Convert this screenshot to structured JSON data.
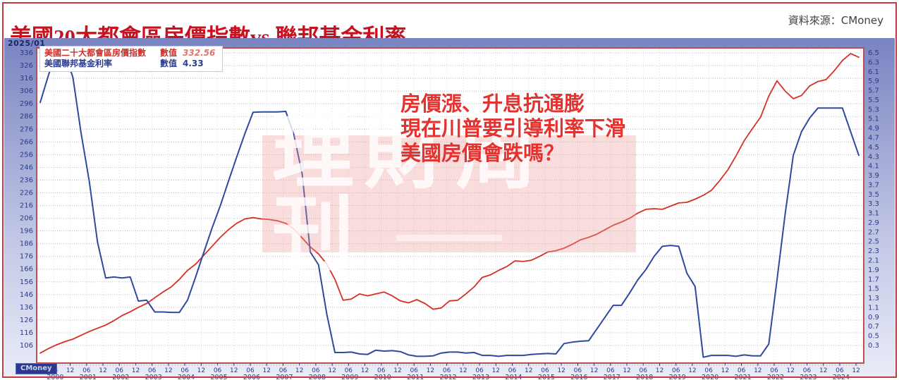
{
  "header": {
    "title": "美國20大都會區房價指數vs.聯邦基金利率",
    "source": "資料來源：CMoney"
  },
  "widget": {
    "date_label": "2025/01",
    "logo": "CMoney",
    "legend": [
      {
        "label": "美國二十大都會區房價指數",
        "value_label": "數值",
        "value": "332.56"
      },
      {
        "label": "美國聯邦基金利率",
        "value_label": "數值",
        "value": "4.33"
      }
    ],
    "annotation": {
      "lines": [
        "房價漲、升息抗通膨",
        "現在川普要引導利率下滑",
        "美國房價會跌嗎？"
      ]
    },
    "watermark": "理財周刊"
  },
  "colors": {
    "title": "#c8101e",
    "page_border": "#c5383f",
    "plot_border": "#c0504d",
    "axis_labels": "#2b3a8c",
    "grid_line": "#bcbcc4",
    "vertical_grid_line": "#d9d9e0",
    "home_price_line": "#d62f26",
    "fed_funds_line": "#2e4a9e",
    "annotation": "#e5322e",
    "watermark_panel": "#ec9a9a",
    "widget_bg_top": "#7a84c1",
    "widget_bg_bottom": "#e9ecf8"
  },
  "chart_data": {
    "type": "line",
    "title": "美國20大都會區房價指數vs.聯邦基金利率",
    "x_unit": "year",
    "x_start": 2000.0,
    "x_step": 0.25,
    "grid": true,
    "legend_position": "top-left",
    "series": [
      {
        "name": "美國二十大都會區房價指數",
        "data_name": "home-price-index-line",
        "axis": "left",
        "color": "#d62f26",
        "width": 1.8,
        "current_value": 332.56,
        "values": [
          100,
          103.5,
          106.5,
          109,
          111,
          114,
          117,
          119.5,
          122,
          125.5,
          129.5,
          132.5,
          136,
          139,
          143.5,
          148,
          152,
          158,
          165,
          170,
          177,
          184,
          191,
          197,
          202,
          205.5,
          206.5,
          205.5,
          205,
          204,
          202,
          197.5,
          190.5,
          183.5,
          178,
          170,
          158,
          141.5,
          142.5,
          146.5,
          145,
          146.5,
          148,
          145,
          141,
          139.5,
          142,
          139,
          134.5,
          135.5,
          141,
          141.5,
          146.5,
          152,
          159.5,
          161.5,
          165,
          168,
          172.5,
          172,
          173,
          176,
          179.5,
          180.5,
          182.5,
          185.5,
          189,
          191,
          193.5,
          197,
          200.5,
          203,
          206,
          210,
          213,
          213.5,
          213,
          215.5,
          218,
          218.5,
          221,
          224,
          228,
          235.5,
          244,
          255,
          267,
          276.5,
          285.5,
          302,
          314,
          306,
          300,
          302.5,
          310,
          313.5,
          315,
          322,
          330,
          335.5,
          332.56
        ]
      },
      {
        "name": "美國聯邦基金利率",
        "data_name": "fed-funds-rate-line",
        "axis": "right",
        "color": "#2e4a9e",
        "width": 2,
        "current_value": 4.33,
        "values": [
          5.45,
          6.02,
          6.54,
          6.51,
          5.98,
          4.8,
          3.77,
          2.49,
          1.73,
          1.75,
          1.73,
          1.75,
          1.24,
          1.26,
          1.01,
          1.01,
          1,
          1,
          1.26,
          1.76,
          2.28,
          2.79,
          3.26,
          3.78,
          4.29,
          4.79,
          5.24,
          5.25,
          5.25,
          5.25,
          5.26,
          4.76,
          3.94,
          2.28,
          2.01,
          0.97,
          0.15,
          0.15,
          0.16,
          0.12,
          0.11,
          0.2,
          0.18,
          0.19,
          0.17,
          0.1,
          0.07,
          0.07,
          0.08,
          0.14,
          0.16,
          0.16,
          0.14,
          0.15,
          0.09,
          0.09,
          0.07,
          0.09,
          0.09,
          0.09,
          0.11,
          0.12,
          0.13,
          0.12,
          0.34,
          0.37,
          0.39,
          0.4,
          0.65,
          0.9,
          1.15,
          1.15,
          1.41,
          1.69,
          1.91,
          2.19,
          2.4,
          2.42,
          2.4,
          1.83,
          1.55,
          0.05,
          0.09,
          0.09,
          0.09,
          0.07,
          0.1,
          0.08,
          0.08,
          0.33,
          1.68,
          3.08,
          4.33,
          4.83,
          5.12,
          5.33,
          5.33,
          5.33,
          5.33,
          4.83,
          4.33
        ]
      }
    ],
    "left_axis": {
      "side": "left",
      "label_values": [
        336,
        326,
        316,
        306,
        296,
        286,
        276,
        266,
        256,
        246,
        236,
        226,
        216,
        206,
        196,
        186,
        176,
        166,
        156,
        146,
        136,
        126,
        116,
        106
      ]
    },
    "right_axis": {
      "side": "right",
      "label_values": [
        6.5,
        6.3,
        6.1,
        5.9,
        5.7,
        5.5,
        5.3,
        5.1,
        4.9,
        4.7,
        4.5,
        4.3,
        4.1,
        3.9,
        3.7,
        3.5,
        3.3,
        3.1,
        2.9,
        2.7,
        2.5,
        2.3,
        2.1,
        1.9,
        1.7,
        1.5,
        1.3,
        1.1,
        0.9,
        0.7,
        0.5,
        0.3
      ]
    },
    "x_axis": {
      "years": [
        2000,
        2001,
        2002,
        2003,
        2004,
        2005,
        2006,
        2007,
        2008,
        2009,
        2010,
        2011,
        2012,
        2013,
        2014,
        2015,
        2016,
        2017,
        2018,
        2019,
        2020,
        2021,
        2022,
        2023,
        2024
      ],
      "month_tick_labels": [
        "06",
        "12"
      ]
    }
  }
}
